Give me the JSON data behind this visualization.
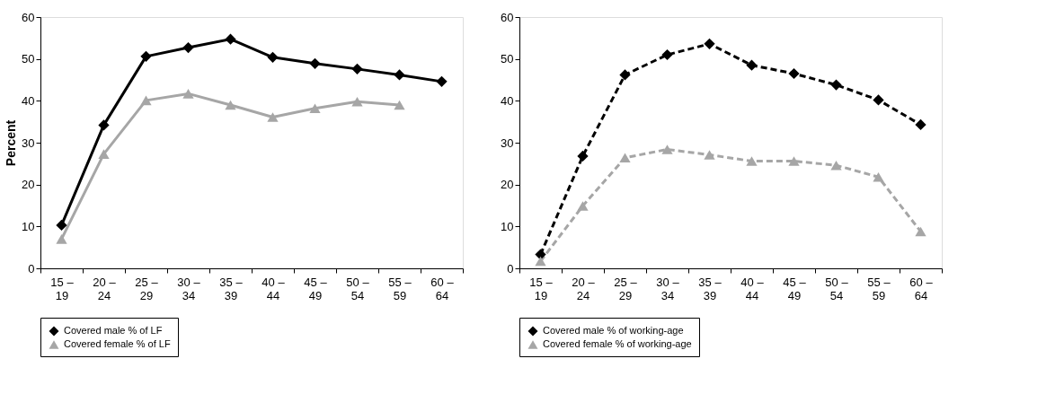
{
  "chart_data": [
    {
      "type": "line",
      "ylabel": "Percent",
      "categories": [
        "15 –\n19",
        "20 –\n24",
        "25 –\n29",
        "30 –\n34",
        "35 –\n39",
        "40 –\n44",
        "45 –\n49",
        "50 –\n54",
        "55 –\n59",
        "60 –\n64"
      ],
      "ylim": [
        0,
        60
      ],
      "yticks": [
        0,
        10,
        20,
        30,
        40,
        50,
        60
      ],
      "grid": false,
      "legend": "bottom",
      "series": [
        {
          "name": "Covered male % of LF",
          "color": "#000000",
          "marker": "diamond",
          "line_style": "solid",
          "values": [
            10.3,
            34.2,
            50.6,
            52.7,
            54.7,
            50.4,
            48.9,
            47.6,
            46.2,
            44.6
          ]
        },
        {
          "name": "Covered female % of LF",
          "color": "#a6a6a6",
          "marker": "triangle",
          "line_style": "solid",
          "values": [
            7.0,
            27.3,
            40.1,
            41.7,
            39.0,
            36.1,
            38.2,
            39.8,
            39.0,
            null
          ]
        }
      ]
    },
    {
      "type": "line",
      "categories": [
        "15 –\n19",
        "20 –\n24",
        "25 –\n29",
        "30 –\n34",
        "35 –\n39",
        "40 –\n44",
        "45 –\n49",
        "50 –\n54",
        "55 –\n59",
        "60 –\n64"
      ],
      "ylim": [
        0,
        60
      ],
      "yticks": [
        0,
        10,
        20,
        30,
        40,
        50,
        60
      ],
      "grid": false,
      "legend": "bottom",
      "series": [
        {
          "name": "Covered male % of working-age",
          "color": "#000000",
          "marker": "diamond",
          "line_style": "dashed",
          "values": [
            3.3,
            26.8,
            46.2,
            51.0,
            53.6,
            48.5,
            46.5,
            43.8,
            40.2,
            34.3
          ]
        },
        {
          "name": "Covered female % of working-age",
          "color": "#a6a6a6",
          "marker": "triangle",
          "line_style": "dashed",
          "values": [
            1.7,
            14.9,
            26.4,
            28.4,
            27.1,
            25.6,
            25.6,
            24.6,
            21.8,
            8.8
          ]
        }
      ]
    }
  ]
}
